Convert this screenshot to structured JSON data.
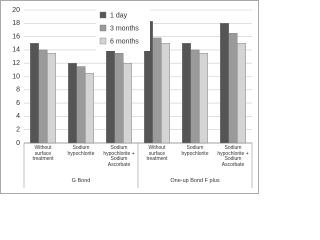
{
  "chart_data": {
    "type": "bar",
    "categories": [
      "Without\nsurface\ntreatment",
      "Sodium\nhypochlorite",
      "Sodium\nhypochlorite +\nSodium\nAscorbate",
      "Without\nsurface\ntreatment",
      "Sodium\nhypochlorite",
      "Sodium\nhypochlorite +\nSodium\nAscorbate"
    ],
    "groups": [
      "G Bond",
      "One-up Bond F plus"
    ],
    "series": [
      {
        "name": "1 day",
        "color": "#555555",
        "values": [
          15,
          12,
          14.5,
          18.3,
          15,
          18
        ]
      },
      {
        "name": "3 months",
        "color": "#9a9a9a",
        "values": [
          14,
          11.5,
          13.5,
          15.8,
          14,
          16.5
        ]
      },
      {
        "name": "6 months",
        "color": "#d4d4d4",
        "values": [
          13.5,
          10.5,
          12,
          15,
          13.5,
          15
        ]
      }
    ],
    "ylim": [
      0,
      20
    ],
    "yticks": [
      0,
      2,
      4,
      6,
      8,
      10,
      12,
      14,
      16,
      18,
      20
    ],
    "grid": true,
    "legend": "top"
  }
}
